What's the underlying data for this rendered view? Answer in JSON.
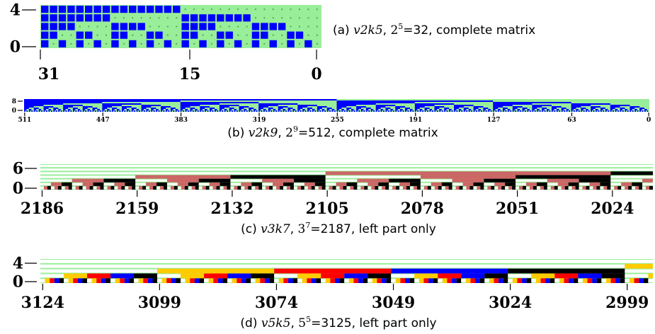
{
  "panels": [
    {
      "id": "a",
      "caption": {
        "prefix": "(a) ",
        "math": "v2k5",
        "sep": ", ",
        "base": "2",
        "exp": "5",
        "eq": "=32",
        "suffix": ", complete matrix"
      },
      "y_ticks": [
        "4",
        "0"
      ],
      "x_ticks": [
        "31",
        "15",
        "0"
      ],
      "columns": 32,
      "rows": 5,
      "colors": [
        "#ffffff",
        "#0000ff"
      ],
      "background": "#99ee99"
    },
    {
      "id": "b",
      "caption": {
        "prefix": "(b) ",
        "math": "v2k9",
        "sep": ", ",
        "base": "2",
        "exp": "9",
        "eq": "=512",
        "suffix": ", complete matrix"
      },
      "y_ticks": [
        "8",
        "0"
      ],
      "x_ticks": [
        "511",
        "447",
        "383",
        "319",
        "255",
        "191",
        "127",
        "63",
        "0"
      ],
      "columns": 512,
      "rows": 9,
      "colors": [
        "#ffffff",
        "#0000ff"
      ],
      "background": "#99ee99"
    },
    {
      "id": "c",
      "caption": {
        "prefix": "(c) ",
        "math": "v3k7",
        "sep": ", ",
        "base": "3",
        "exp": "7",
        "eq": "=2187",
        "suffix": ", left part only"
      },
      "y_ticks": [
        "6",
        "0"
      ],
      "x_ticks": [
        "2186",
        "2159",
        "2132",
        "2105",
        "2078",
        "2051",
        "2024"
      ],
      "columns_shown": 174,
      "rows": 7,
      "colors": [
        "#000000",
        "#cc6666",
        "#ffffff"
      ],
      "background": "#99ee99"
    },
    {
      "id": "d",
      "caption": {
        "prefix": "(d) ",
        "math": "v5k5",
        "sep": ", ",
        "base": "5",
        "exp": "5",
        "eq": "=3125",
        "suffix": ", left part only"
      },
      "y_ticks": [
        "4",
        "0"
      ],
      "x_ticks": [
        "3124",
        "3099",
        "3074",
        "3049",
        "3024",
        "2999"
      ],
      "columns_shown": 131,
      "rows": 5,
      "colors": [
        "#000000",
        "#0000ff",
        "#ff0000",
        "#ffcc00",
        "#ffffff"
      ],
      "background": "#99ee99"
    }
  ]
}
